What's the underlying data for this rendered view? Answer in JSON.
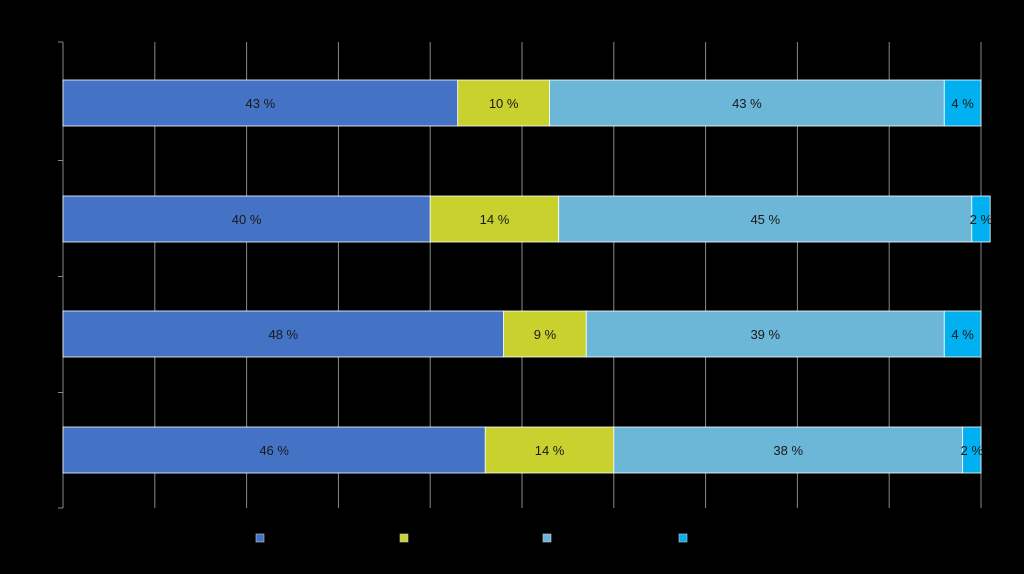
{
  "chart_data": {
    "type": "bar",
    "orientation": "horizontal",
    "stacked": true,
    "categories": [
      "",
      "",
      "",
      ""
    ],
    "series": [
      {
        "values": [
          43,
          40,
          48,
          46
        ],
        "labels": [
          "43 %",
          "40 %",
          "48 %",
          "46 %"
        ],
        "color": "#4472C4"
      },
      {
        "values": [
          10,
          14,
          9,
          14
        ],
        "labels": [
          "10 %",
          "14 %",
          "9 %",
          "14 %"
        ],
        "color": "#C8D12D"
      },
      {
        "values": [
          43,
          45,
          39,
          38
        ],
        "labels": [
          "43 %",
          "45 %",
          "39 %",
          "38 %"
        ],
        "color": "#6CB6D8"
      },
      {
        "values": [
          4,
          2,
          4,
          2
        ],
        "labels": [
          "4 %",
          "2 %",
          "4 %",
          "2 %"
        ],
        "color": "#00B0F0"
      }
    ],
    "xlim": [
      0,
      100
    ],
    "grid": true,
    "legend": "bottom",
    "title": "",
    "xlabel": "",
    "ylabel": ""
  }
}
